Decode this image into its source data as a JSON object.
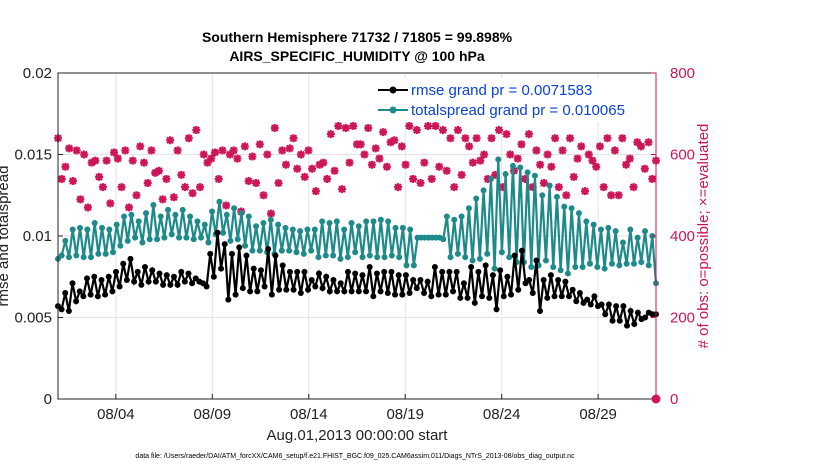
{
  "chart_data": {
    "type": "line",
    "title": "Southern Hemisphere 71732 / 71805 = 99.898%",
    "subtitle": "AIRS_SPECIFIC_HUMIDITY @ 100 hPa",
    "xlabel": "Aug.01,2013 00:00:00 start",
    "ylabel": "rmse and totalspread",
    "ylabel_right": "# of obs: o=possible; ×=evaluated",
    "footer": "data file: /Users/raeder/DAI/ATM_forcXX/CAM6_setup/f.e21.FHIST_BGC.f09_025.CAM6assim.011/Diags_NTrS_2013-08/obs_diag_output.nc",
    "xlim": [
      1,
      32
    ],
    "ylim": [
      0,
      0.02
    ],
    "ylim_right": [
      0,
      800
    ],
    "x_ticks": [
      {
        "x": 4,
        "label": "08/04"
      },
      {
        "x": 9,
        "label": "08/09"
      },
      {
        "x": 14,
        "label": "08/14"
      },
      {
        "x": 19,
        "label": "08/19"
      },
      {
        "x": 24,
        "label": "08/24"
      },
      {
        "x": 29,
        "label": "08/29"
      }
    ],
    "y_ticks": [
      {
        "v": 0,
        "label": "0"
      },
      {
        "v": 0.005,
        "label": "0.005"
      },
      {
        "v": 0.01,
        "label": "0.01"
      },
      {
        "v": 0.015,
        "label": "0.015"
      },
      {
        "v": 0.02,
        "label": "0.02"
      }
    ],
    "y_ticks_right": [
      {
        "v": 0,
        "label": "0"
      },
      {
        "v": 200,
        "label": "200"
      },
      {
        "v": 400,
        "label": "400"
      },
      {
        "v": 600,
        "label": "600"
      },
      {
        "v": 800,
        "label": "800"
      }
    ],
    "grid": true,
    "legend_position": "top-right",
    "series": [
      {
        "name": "rmse grand pr = 0.0071583",
        "color": "#000000",
        "axis": "left",
        "marker": "circle",
        "values": [
          0.0057,
          0.0055,
          0.0065,
          0.0054,
          0.0071,
          0.006,
          0.0066,
          0.0063,
          0.0074,
          0.0064,
          0.0075,
          0.0063,
          0.0073,
          0.0064,
          0.0075,
          0.0066,
          0.0078,
          0.0069,
          0.0083,
          0.0073,
          0.0086,
          0.0072,
          0.0078,
          0.007,
          0.0081,
          0.0072,
          0.0079,
          0.0072,
          0.0077,
          0.007,
          0.0076,
          0.007,
          0.0075,
          0.007,
          0.0078,
          0.0072,
          0.0077,
          0.0071,
          0.0074,
          0.0072,
          0.0071,
          0.0069,
          0.0089,
          0.0075,
          0.0102,
          0.008,
          0.0095,
          0.0061,
          0.0089,
          0.0064,
          0.0093,
          0.0068,
          0.0088,
          0.0066,
          0.008,
          0.0066,
          0.0079,
          0.0069,
          0.0092,
          0.0064,
          0.0088,
          0.0067,
          0.0082,
          0.0067,
          0.0078,
          0.0067,
          0.0078,
          0.0065,
          0.0078,
          0.0067,
          0.0073,
          0.0069,
          0.0077,
          0.0068,
          0.0075,
          0.0066,
          0.0073,
          0.0066,
          0.0071,
          0.0066,
          0.0078,
          0.0066,
          0.0077,
          0.0066,
          0.0076,
          0.0066,
          0.0081,
          0.0063,
          0.0077,
          0.0066,
          0.0078,
          0.0065,
          0.0078,
          0.0064,
          0.0076,
          0.0064,
          0.0076,
          0.0065,
          0.0073,
          0.0068,
          0.0073,
          0.0065,
          0.0072,
          0.0063,
          0.0081,
          0.0064,
          0.0078,
          0.0064,
          0.0078,
          0.0066,
          0.0078,
          0.0062,
          0.0071,
          0.0062,
          0.0081,
          0.0059,
          0.0078,
          0.0063,
          0.0082,
          0.0062,
          0.0076,
          0.0055,
          0.0079,
          0.0063,
          0.0075,
          0.0064,
          0.0088,
          0.0067,
          0.0091,
          0.0071,
          0.0073,
          0.0065,
          0.0085,
          0.0054,
          0.0073,
          0.0062,
          0.0076,
          0.0063,
          0.0073,
          0.0063,
          0.0072,
          0.0063,
          0.0067,
          0.006,
          0.0065,
          0.0059,
          0.0061,
          0.0058,
          0.0063,
          0.0057,
          0.0058,
          0.0052,
          0.0058,
          0.0048,
          0.0057,
          0.0048,
          0.0057,
          0.0045,
          0.0054,
          0.0046,
          0.0053,
          0.0049,
          0.005,
          0.0053,
          0.0052,
          0.0052
        ]
      },
      {
        "name": "totalspread grand pr = 0.010065",
        "color": "#1e8a8a",
        "axis": "left",
        "marker": "circle",
        "values": [
          0.0086,
          0.0088,
          0.0097,
          0.0087,
          0.0104,
          0.0088,
          0.0105,
          0.0087,
          0.0104,
          0.0087,
          0.0108,
          0.0089,
          0.0105,
          0.0089,
          0.0104,
          0.009,
          0.0107,
          0.0094,
          0.0112,
          0.0097,
          0.0113,
          0.0099,
          0.0109,
          0.0096,
          0.0114,
          0.0098,
          0.0119,
          0.0098,
          0.0112,
          0.0099,
          0.0116,
          0.0101,
          0.0113,
          0.0099,
          0.0116,
          0.0099,
          0.0112,
          0.0098,
          0.0109,
          0.0099,
          0.0107,
          0.0096,
          0.0115,
          0.0101,
          0.0121,
          0.0102,
          0.0113,
          0.0097,
          0.0117,
          0.0098,
          0.0114,
          0.0094,
          0.0112,
          0.0091,
          0.0106,
          0.0091,
          0.0108,
          0.009,
          0.011,
          0.0089,
          0.0107,
          0.0091,
          0.0105,
          0.0091,
          0.0104,
          0.009,
          0.0103,
          0.0089,
          0.0104,
          0.0091,
          0.0104,
          0.0087,
          0.0109,
          0.0088,
          0.0108,
          0.0088,
          0.0109,
          0.0086,
          0.0104,
          0.0087,
          0.0108,
          0.009,
          0.0106,
          0.0087,
          0.0109,
          0.0088,
          0.0109,
          0.0087,
          0.011,
          0.0087,
          0.0109,
          0.0088,
          0.0105,
          0.0087,
          0.0105,
          0.0082,
          0.0104,
          0.0082,
          0.0099,
          0.0099,
          0.0099,
          0.0099,
          0.0099,
          0.0099,
          0.0099,
          0.0098,
          0.0112,
          0.0087,
          0.011,
          0.0089,
          0.0112,
          0.0087,
          0.0117,
          0.0085,
          0.0123,
          0.0086,
          0.0128,
          0.0089,
          0.0135,
          0.008,
          0.0147,
          0.009,
          0.0138,
          0.0087,
          0.0143,
          0.0084,
          0.0142,
          0.0084,
          0.0139,
          0.0081,
          0.0137,
          0.0082,
          0.0125,
          0.0085,
          0.0131,
          0.0081,
          0.0124,
          0.0079,
          0.0118,
          0.0077,
          0.0117,
          0.0081,
          0.0114,
          0.0081,
          0.0109,
          0.0083,
          0.0107,
          0.0081,
          0.0104,
          0.008,
          0.0105,
          0.0083,
          0.0103,
          0.0082,
          0.0096,
          0.0083,
          0.0104,
          0.0083,
          0.0099,
          0.0084,
          0.0103,
          0.0082,
          0.01,
          0.0071
        ]
      },
      {
        "name": "obs evaluated",
        "color": "#cc1659",
        "axis": "right",
        "marker": "star",
        "values": [
          640,
          540,
          570,
          615,
          535,
          610,
          490,
          600,
          470,
          580,
          585,
          545,
          520,
          585,
          480,
          605,
          590,
          520,
          610,
          470,
          585,
          500,
          620,
          580,
          530,
          610,
          555,
          560,
          490,
          540,
          635,
          495,
          610,
          550,
          520,
          640,
          505,
          660,
          520,
          600,
          580,
          590,
          605,
          540,
          610,
          475,
          600,
          610,
          590,
          460,
          620,
          535,
          595,
          530,
          625,
          500,
          600,
          455,
          665,
          530,
          610,
          575,
          615,
          640,
          565,
          600,
          545,
          610,
          565,
          510,
          575,
          580,
          540,
          650,
          560,
          670,
          515,
          665,
          580,
          670,
          625,
          625,
          600,
          665,
          575,
          615,
          590,
          655,
          570,
          630,
          635,
          520,
          620,
          575,
          670,
          540,
          660,
          530,
          580,
          670,
          540,
          670,
          570,
          660,
          560,
          640,
          520,
          660,
          550,
          640,
          620,
          580,
          640,
          585,
          600,
          540,
          640,
          550,
          660,
          520,
          650,
          600,
          560,
          590,
          625,
          540,
          650,
          520,
          610,
          575,
          530,
          600,
          570,
          640,
          520,
          610,
          500,
          640,
          545,
          590,
          620,
          510,
          600,
          585,
          570,
          620,
          520,
          640,
          500,
          610,
          500,
          640,
          575,
          590,
          520,
          630,
          620,
          565,
          630,
          540,
          585
        ]
      },
      {
        "name": "obs possible",
        "color": "#cc1659",
        "axis": "right",
        "marker": "circle-open",
        "values": [
          0
        ]
      }
    ],
    "legend": [
      {
        "label": "rmse grand pr = 0.0071583",
        "color": "#000000"
      },
      {
        "label": "totalspread grand pr = 0.010065",
        "color": "#1e8a8a"
      }
    ]
  }
}
